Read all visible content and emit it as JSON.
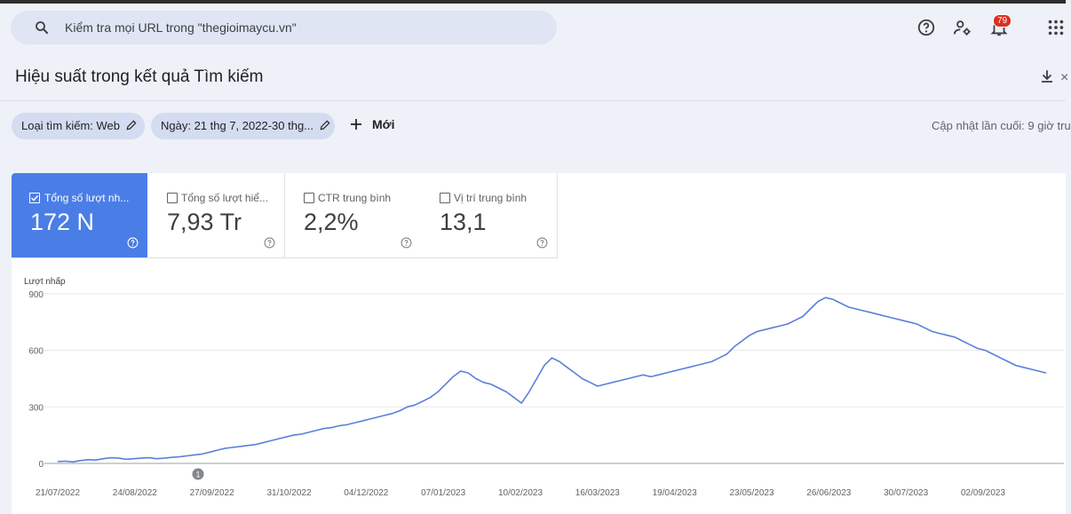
{
  "search": {
    "placeholder": "Kiểm tra mọi URL trong \"thegioimaycu.vn\""
  },
  "header": {
    "notification_count": "79"
  },
  "page": {
    "title": "Hiệu suất trong kết quả Tìm kiếm"
  },
  "filters": {
    "search_type": "Loại tìm kiếm: Web",
    "date": "Ngày: 21 thg 7, 2022-30 thg...",
    "new_label": "Mới",
    "last_updated": "Cập nhật lần cuối: 9 giờ tru"
  },
  "metrics": [
    {
      "label": "Tổng số lượt nh...",
      "value": "172 N",
      "selected": true
    },
    {
      "label": "Tổng số lượt hiể...",
      "value": "7,93 Tr",
      "selected": false
    },
    {
      "label": "CTR trung bình",
      "value": "2,2%",
      "selected": false
    },
    {
      "label": "Vị trí trung bình",
      "value": "13,1",
      "selected": false
    }
  ],
  "colors": {
    "accent": "#4a7ee6",
    "line": "#5b7fd9",
    "badge": "#d93025"
  },
  "chart_data": {
    "type": "line",
    "ylabel": "Lượt nhấp",
    "yticks": [
      "900",
      "600",
      "300",
      "0"
    ],
    "ylim": [
      0,
      900
    ],
    "xticks": [
      "21/07/2022",
      "24/08/2022",
      "27/09/2022",
      "31/10/2022",
      "04/12/2022",
      "07/01/2023",
      "10/02/2023",
      "16/03/2023",
      "19/04/2023",
      "23/05/2023",
      "26/06/2023",
      "30/07/2023",
      "02/09/2023"
    ],
    "annotation": "1",
    "series": [
      {
        "values": [
          10,
          12,
          8,
          15,
          20,
          18,
          25,
          30,
          28,
          22,
          25,
          28,
          30,
          25,
          28,
          32,
          35,
          40,
          45,
          50,
          60,
          70,
          80,
          85,
          90,
          95,
          100,
          110,
          120,
          130,
          140,
          150,
          155,
          165,
          175,
          185,
          190,
          200,
          205,
          215,
          225,
          235,
          245,
          255,
          265,
          280,
          300,
          310,
          330,
          350,
          380,
          420,
          460,
          490,
          480,
          450,
          430,
          420,
          400,
          380,
          350,
          320,
          380,
          450,
          520,
          560,
          540,
          510,
          480,
          450,
          430,
          410,
          420,
          430,
          440,
          450,
          460,
          470,
          460,
          470,
          480,
          490,
          500,
          510,
          520,
          530,
          540,
          560,
          580,
          620,
          650,
          680,
          700,
          710,
          720,
          730,
          740,
          760,
          780,
          820,
          860,
          880,
          870,
          850,
          830,
          820,
          810,
          800,
          790,
          780,
          770,
          760,
          750,
          740,
          720,
          700,
          690,
          680,
          670,
          650,
          630,
          610,
          600,
          580,
          560,
          540,
          520,
          510,
          500,
          490,
          480
        ]
      }
    ]
  }
}
